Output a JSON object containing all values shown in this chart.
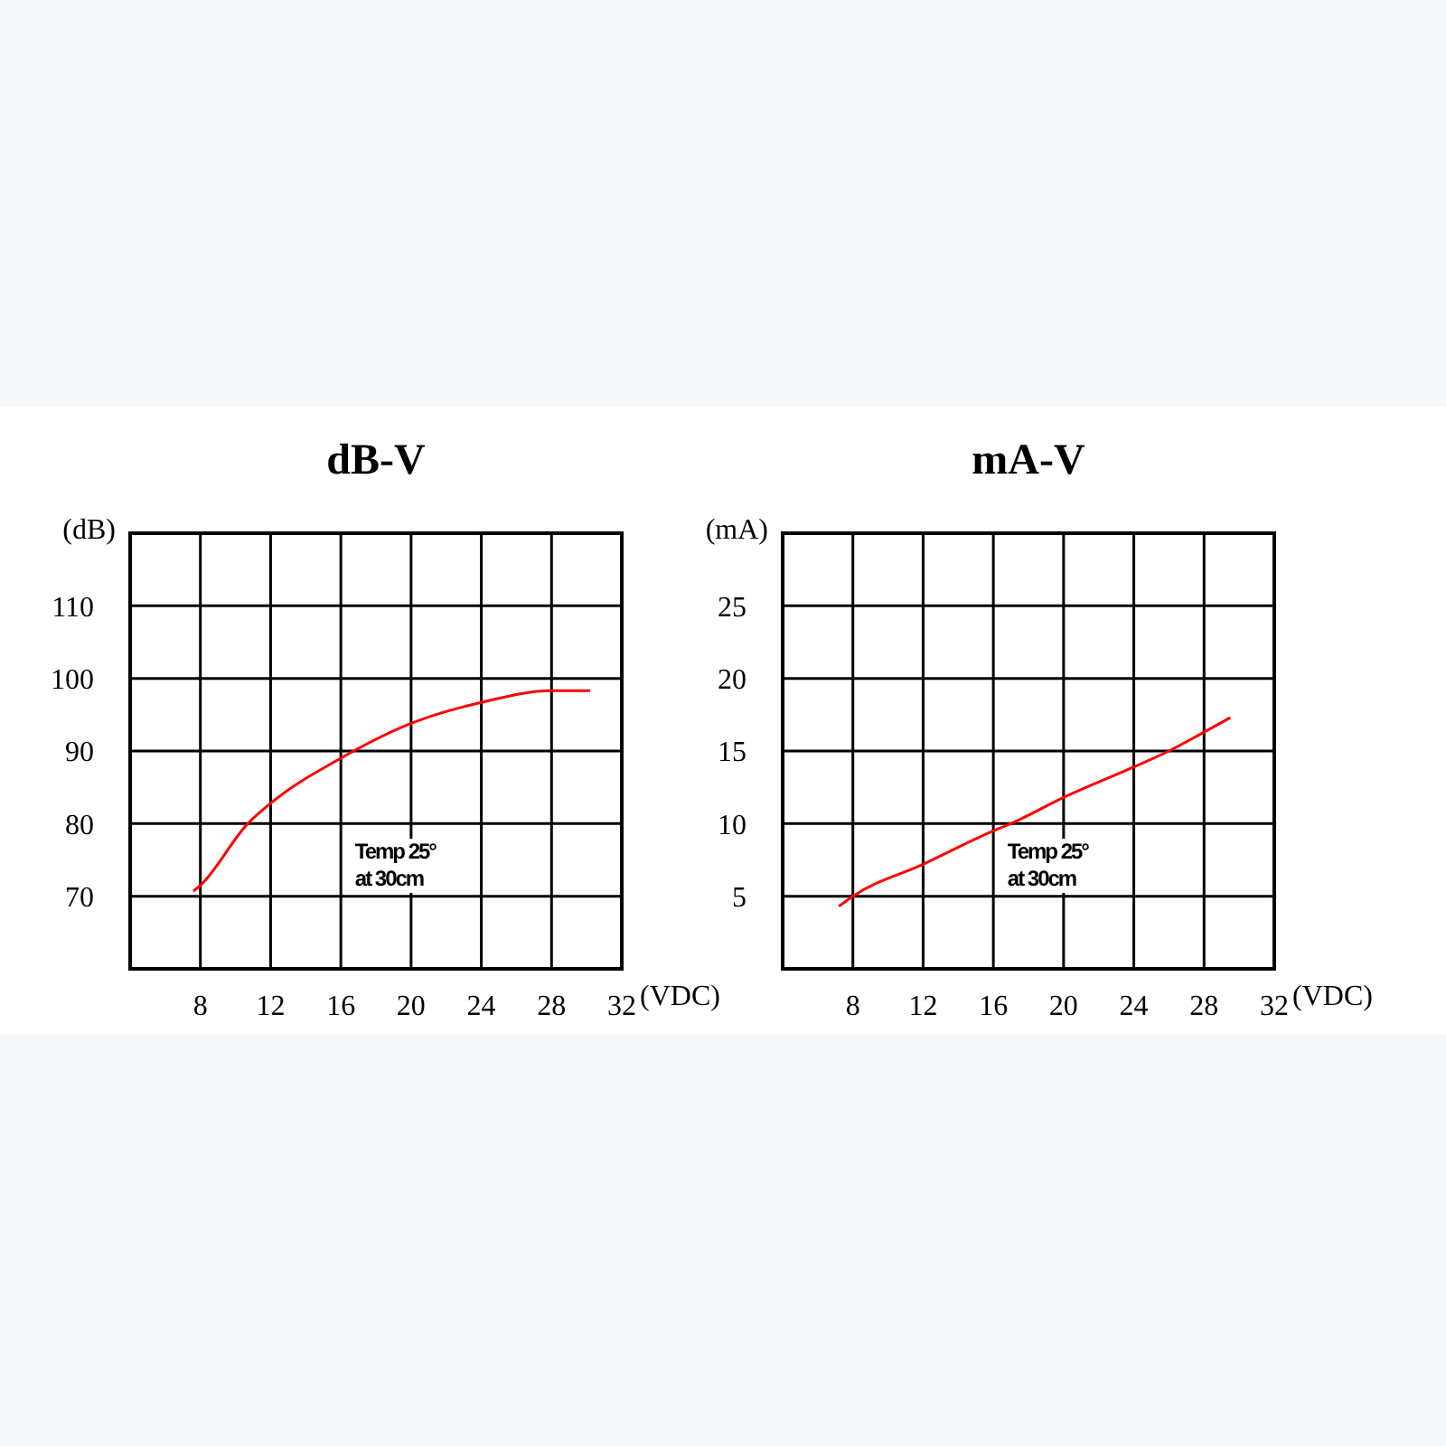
{
  "chart_data": [
    {
      "type": "line",
      "title": "dB-V",
      "xlabel": "(VDC)",
      "ylabel": "(dB)",
      "x": [
        7.6,
        8,
        10.7,
        12,
        16,
        20,
        24,
        28,
        30.2
      ],
      "series": [
        {
          "color": "#ff0000",
          "values": [
            70.7,
            71.5,
            80,
            82.8,
            89,
            93.8,
            96.7,
            98.3,
            98.3
          ]
        }
      ],
      "xlim": [
        4,
        32
      ],
      "xticks": [
        8,
        12,
        16,
        20,
        24,
        28,
        32
      ],
      "ylim": [
        60,
        120
      ],
      "yticks": [
        70,
        80,
        90,
        100,
        110
      ],
      "grid": true,
      "annotations": [
        "Temp 25°\nat 30cm"
      ]
    },
    {
      "type": "line",
      "title": "mA-V",
      "xlabel": "(VDC)",
      "ylabel": "(mA)",
      "x": [
        7.2,
        8,
        12,
        16,
        17,
        20,
        24,
        26,
        28,
        29.5
      ],
      "series": [
        {
          "color": "#ff0000",
          "values": [
            4.3,
            5,
            7.2,
            9.5,
            10,
            11.8,
            13.9,
            15,
            16.3,
            17.3
          ]
        }
      ],
      "xlim": [
        4,
        32
      ],
      "xticks": [
        8,
        12,
        16,
        20,
        24,
        28,
        32
      ],
      "ylim": [
        0,
        30
      ],
      "yticks": [
        5,
        10,
        15,
        20,
        25
      ],
      "grid": true,
      "annotations": [
        "Temp 25°\nat 30cm"
      ]
    }
  ]
}
